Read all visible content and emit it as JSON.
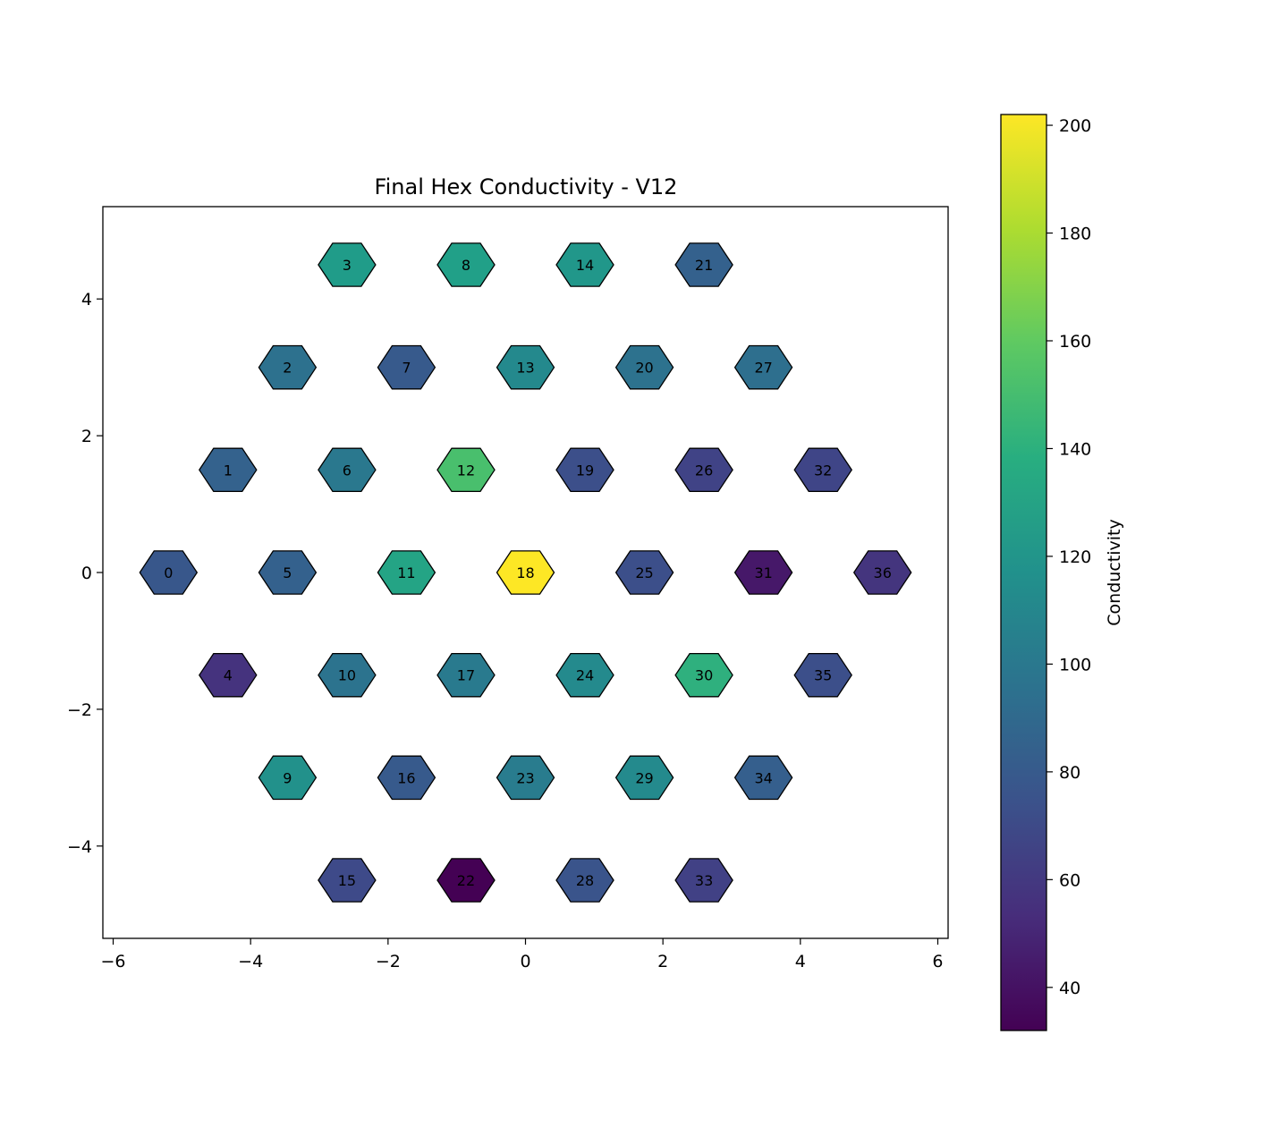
{
  "chart_data": {
    "type": "heatmap",
    "title": "Final Hex Conductivity - V12",
    "xlabel": "",
    "ylabel": "",
    "xlim": [
      -6.15,
      6.15
    ],
    "ylim": [
      -5.35,
      5.35
    ],
    "xticks": [
      -6,
      -4,
      -2,
      0,
      2,
      4,
      6
    ],
    "xtick_labels": [
      "−6",
      "−4",
      "−2",
      "0",
      "2",
      "4",
      "6"
    ],
    "yticks": [
      -4,
      -2,
      0,
      2,
      4
    ],
    "ytick_labels": [
      "−4",
      "−2",
      "0",
      "2",
      "4"
    ],
    "grid": false,
    "colorbar": {
      "label": "Conductivity",
      "colormap": "viridis",
      "range": [
        32,
        202
      ],
      "ticks": [
        40,
        60,
        80,
        100,
        120,
        140,
        160,
        180,
        200
      ],
      "tick_labels": [
        "40",
        "60",
        "80",
        "100",
        "120",
        "140",
        "160",
        "180",
        "200"
      ]
    },
    "hex_cells": [
      {
        "id": "0",
        "x": -5.196,
        "y": 0.0,
        "value": 78
      },
      {
        "id": "1",
        "x": -4.33,
        "y": 1.5,
        "value": 85
      },
      {
        "id": "2",
        "x": -3.464,
        "y": 3.0,
        "value": 95
      },
      {
        "id": "3",
        "x": -2.598,
        "y": 4.5,
        "value": 125
      },
      {
        "id": "4",
        "x": -4.33,
        "y": -1.5,
        "value": 57
      },
      {
        "id": "5",
        "x": -3.464,
        "y": 0.0,
        "value": 84
      },
      {
        "id": "6",
        "x": -2.598,
        "y": 1.5,
        "value": 100
      },
      {
        "id": "7",
        "x": -1.732,
        "y": 3.0,
        "value": 80
      },
      {
        "id": "8",
        "x": -0.866,
        "y": 4.5,
        "value": 128
      },
      {
        "id": "9",
        "x": -3.464,
        "y": -3.0,
        "value": 118
      },
      {
        "id": "10",
        "x": -2.598,
        "y": -1.5,
        "value": 97
      },
      {
        "id": "11",
        "x": -1.732,
        "y": 0.0,
        "value": 131
      },
      {
        "id": "12",
        "x": -0.866,
        "y": 1.5,
        "value": 152
      },
      {
        "id": "13",
        "x": 0.0,
        "y": 3.0,
        "value": 112
      },
      {
        "id": "14",
        "x": 0.866,
        "y": 4.5,
        "value": 122
      },
      {
        "id": "15",
        "x": -2.598,
        "y": -4.5,
        "value": 70
      },
      {
        "id": "16",
        "x": -1.732,
        "y": -3.0,
        "value": 80
      },
      {
        "id": "17",
        "x": -0.866,
        "y": -1.5,
        "value": 102
      },
      {
        "id": "18",
        "x": 0.0,
        "y": 0.0,
        "value": 202
      },
      {
        "id": "19",
        "x": 0.866,
        "y": 1.5,
        "value": 73
      },
      {
        "id": "20",
        "x": 1.732,
        "y": 3.0,
        "value": 96
      },
      {
        "id": "21",
        "x": 2.598,
        "y": 4.5,
        "value": 84
      },
      {
        "id": "22",
        "x": -0.866,
        "y": -4.5,
        "value": 32
      },
      {
        "id": "23",
        "x": 0.0,
        "y": -3.0,
        "value": 103
      },
      {
        "id": "24",
        "x": 0.866,
        "y": -1.5,
        "value": 113
      },
      {
        "id": "25",
        "x": 1.732,
        "y": 0.0,
        "value": 73
      },
      {
        "id": "26",
        "x": 2.598,
        "y": 1.5,
        "value": 66
      },
      {
        "id": "27",
        "x": 3.464,
        "y": 3.0,
        "value": 94
      },
      {
        "id": "28",
        "x": 0.866,
        "y": -4.5,
        "value": 76
      },
      {
        "id": "29",
        "x": 1.732,
        "y": -3.0,
        "value": 113
      },
      {
        "id": "30",
        "x": 2.598,
        "y": -1.5,
        "value": 140
      },
      {
        "id": "31",
        "x": 3.464,
        "y": 0.0,
        "value": 43
      },
      {
        "id": "32",
        "x": 4.33,
        "y": 1.5,
        "value": 67
      },
      {
        "id": "33",
        "x": 2.598,
        "y": -4.5,
        "value": 65
      },
      {
        "id": "34",
        "x": 3.464,
        "y": -3.0,
        "value": 83
      },
      {
        "id": "35",
        "x": 4.33,
        "y": -1.5,
        "value": 73
      },
      {
        "id": "36",
        "x": 5.196,
        "y": 0.0,
        "value": 58
      }
    ]
  }
}
